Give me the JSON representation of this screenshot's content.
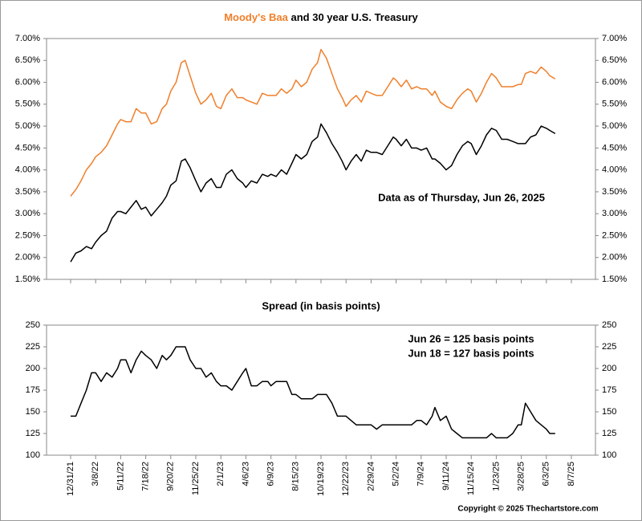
{
  "chart_data": [
    {
      "type": "line",
      "title_parts": [
        "Moody's Baa",
        "and 30 year U.S. Treasury"
      ],
      "title_colors": [
        "#f07f2a",
        "#000000"
      ],
      "annotation": "Data as of Thursday, Jun 26, 2025",
      "annotation_color": "#1010c8",
      "ylim": [
        1.5,
        7
      ],
      "yticks": [
        {
          "value": 1.5,
          "label": "1.50%"
        },
        {
          "value": 2,
          "label": "2.00%"
        },
        {
          "value": 2.5,
          "label": "2.50%"
        },
        {
          "value": 3,
          "label": "3.00%"
        },
        {
          "value": 3.5,
          "label": "3.50%"
        },
        {
          "value": 4,
          "label": "4.00%"
        },
        {
          "value": 4.5,
          "label": "4.50%"
        },
        {
          "value": 5,
          "label": "5.00%"
        },
        {
          "value": 5.5,
          "label": "5.50%"
        },
        {
          "value": 6,
          "label": "6.00%"
        },
        {
          "value": 6.5,
          "label": "6.50%"
        },
        {
          "value": 7,
          "label": "7.00%"
        }
      ],
      "series": [
        {
          "color": "#f07f2a",
          "values": [
            3.4,
            3.55,
            3.75,
            4.0,
            4.15,
            4.3,
            4.4,
            4.55,
            4.8,
            5.05,
            5.15,
            5.1,
            5.1,
            5.4,
            5.3,
            5.3,
            5.05,
            5.1,
            5.4,
            5.5,
            5.8,
            6.0,
            6.45,
            6.5,
            6.15,
            5.75,
            5.5,
            5.6,
            5.75,
            5.45,
            5.4,
            5.7,
            5.85,
            5.65,
            5.65,
            5.6,
            5.55,
            5.5,
            5.75,
            5.7,
            5.7,
            5.7,
            5.85,
            5.75,
            5.85,
            6.05,
            5.9,
            6.0,
            6.3,
            6.45,
            6.75,
            6.55,
            6.2,
            5.85,
            5.65,
            5.45,
            5.6,
            5.7,
            5.55,
            5.8,
            5.75,
            5.7,
            5.7,
            5.9,
            6.1,
            6.05,
            5.9,
            6.05,
            5.85,
            5.9,
            5.85,
            5.85,
            5.7,
            5.8,
            5.55,
            5.45,
            5.4,
            5.6,
            5.75,
            5.85,
            5.8,
            5.55,
            5.75,
            6.0,
            6.2,
            6.1,
            5.9,
            5.9,
            5.9,
            5.95,
            5.95,
            6.2,
            6.25,
            6.2,
            6.35,
            6.25,
            6.15,
            6.08
          ]
        },
        {
          "color": "#000000",
          "values": [
            1.9,
            2.1,
            2.15,
            2.25,
            2.2,
            2.35,
            2.5,
            2.6,
            2.9,
            3.05,
            3.05,
            3.0,
            3.15,
            3.3,
            3.1,
            3.15,
            2.95,
            3.1,
            3.25,
            3.4,
            3.65,
            3.75,
            4.2,
            4.25,
            4.05,
            3.75,
            3.5,
            3.7,
            3.8,
            3.6,
            3.6,
            3.9,
            4.0,
            3.8,
            3.7,
            3.6,
            3.75,
            3.7,
            3.9,
            3.85,
            3.9,
            3.85,
            4.0,
            3.9,
            4.15,
            4.35,
            4.25,
            4.35,
            4.65,
            4.75,
            5.05,
            4.85,
            4.6,
            4.4,
            4.2,
            4.0,
            4.2,
            4.35,
            4.2,
            4.45,
            4.4,
            4.4,
            4.35,
            4.55,
            4.75,
            4.7,
            4.55,
            4.7,
            4.5,
            4.5,
            4.45,
            4.5,
            4.25,
            4.25,
            4.15,
            4.0,
            4.1,
            4.35,
            4.55,
            4.65,
            4.6,
            4.35,
            4.55,
            4.8,
            4.95,
            4.9,
            4.7,
            4.7,
            4.65,
            4.6,
            4.6,
            4.6,
            4.75,
            4.8,
            5.0,
            4.95,
            4.9,
            4.83
          ]
        }
      ]
    },
    {
      "type": "line",
      "title": "Spread (in basis points)",
      "annotations": [
        "Jun 26 = 125 basis points",
        "Jun 18 = 127 basis points"
      ],
      "annotation_color": "#1010c8",
      "copyright": "Copyright © 2025 Thechartstore.com",
      "x": [
        "12/31/21",
        "1/14/22",
        "1/28/22",
        "2/11/22",
        "2/25/22",
        "3/8/22",
        "3/22/22",
        "4/5/22",
        "4/19/22",
        "5/3/22",
        "5/11/22",
        "5/25/22",
        "6/8/22",
        "6/22/22",
        "7/6/22",
        "7/18/22",
        "8/1/22",
        "8/15/22",
        "8/29/22",
        "9/9/22",
        "9/20/22",
        "10/4/22",
        "10/18/22",
        "10/28/22",
        "11/10/22",
        "11/25/22",
        "12/9/22",
        "12/23/22",
        "1/6/23",
        "1/20/23",
        "2/1/23",
        "2/15/23",
        "3/1/23",
        "3/15/23",
        "3/29/23",
        "4/6/23",
        "4/20/23",
        "5/4/23",
        "5/18/23",
        "6/1/23",
        "6/9/23",
        "6/23/23",
        "7/7/23",
        "7/21/23",
        "8/4/23",
        "8/15/23",
        "8/29/23",
        "9/12/23",
        "9/26/23",
        "10/10/23",
        "10/19/23",
        "11/2/23",
        "11/16/23",
        "11/30/23",
        "12/12/23",
        "12/22/23",
        "1/5/24",
        "1/19/24",
        "2/2/24",
        "2/16/24",
        "2/29/24",
        "3/14/24",
        "3/28/24",
        "4/11/24",
        "4/25/24",
        "5/2/24",
        "5/16/24",
        "5/30/24",
        "6/13/24",
        "6/27/24",
        "7/9/24",
        "7/23/24",
        "8/6/24",
        "8/13/24",
        "8/27/24",
        "9/11/24",
        "9/25/24",
        "10/9/24",
        "10/23/24",
        "11/6/24",
        "11/15/24",
        "11/29/24",
        "12/13/24",
        "12/27/24",
        "1/10/25",
        "1/23/25",
        "2/6/25",
        "2/20/25",
        "3/6/25",
        "3/20/25",
        "3/28/25",
        "4/8/25",
        "4/22/25",
        "5/6/25",
        "5/20/25",
        "6/3/25",
        "6/12/25",
        "6/26/25"
      ],
      "xticks": [
        "12/31/21",
        "3/8/22",
        "5/11/22",
        "7/18/22",
        "9/20/22",
        "11/25/22",
        "2/1/23",
        "4/6/23",
        "6/9/23",
        "8/15/23",
        "10/19/23",
        "12/22/23",
        "2/29/24",
        "5/2/24",
        "7/9/24",
        "9/11/24",
        "11/15/24",
        "1/23/25",
        "3/28/25",
        "6/3/25",
        "8/7/25"
      ],
      "ylim": [
        100,
        250
      ],
      "yticks": [
        100,
        125,
        150,
        175,
        200,
        225,
        250
      ],
      "series": [
        {
          "color": "#000000",
          "values": [
            145,
            145,
            160,
            175,
            195,
            195,
            185,
            195,
            190,
            200,
            210,
            210,
            195,
            210,
            220,
            215,
            210,
            200,
            215,
            210,
            215,
            225,
            225,
            225,
            210,
            200,
            200,
            190,
            195,
            185,
            180,
            180,
            175,
            185,
            195,
            200,
            180,
            180,
            185,
            185,
            180,
            185,
            185,
            185,
            170,
            170,
            165,
            165,
            165,
            170,
            170,
            170,
            160,
            145,
            145,
            145,
            140,
            135,
            135,
            135,
            135,
            130,
            135,
            135,
            135,
            135,
            135,
            135,
            135,
            140,
            140,
            135,
            145,
            155,
            140,
            145,
            130,
            125,
            120,
            120,
            120,
            120,
            120,
            120,
            125,
            120,
            120,
            120,
            125,
            135,
            135,
            160,
            150,
            140,
            135,
            130,
            125,
            125
          ]
        }
      ]
    }
  ]
}
